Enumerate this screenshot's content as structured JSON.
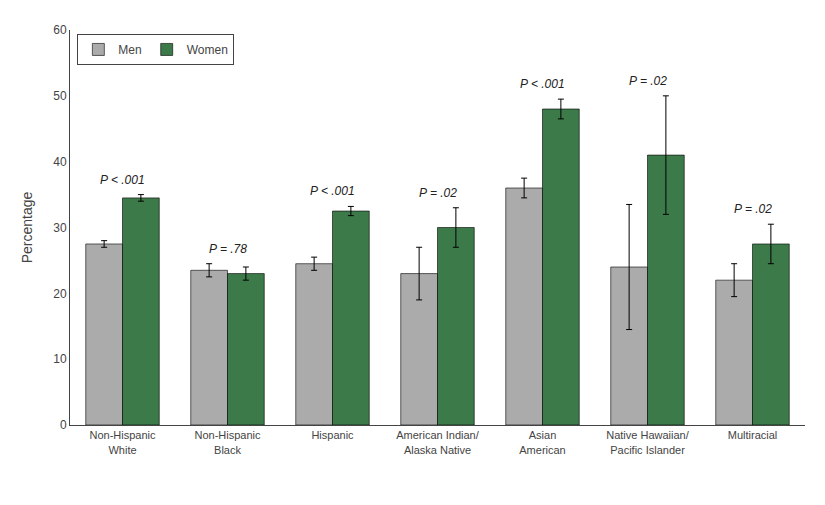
{
  "chart_data": {
    "type": "bar",
    "categories": [
      "Non-Hispanic\nWhite",
      "Non-Hispanic\nBlack",
      "Hispanic",
      "American Indian/\nAlaska Native",
      "Asian\nAmerican",
      "Native Hawaiian/\nPacific Islander",
      "Multiracial"
    ],
    "series": [
      {
        "name": "Men",
        "color": "#ababab",
        "values": [
          27.5,
          23.5,
          24.5,
          23.0,
          36.0,
          24.0,
          22.0
        ],
        "errors": [
          0.5,
          1.0,
          1.0,
          4.0,
          1.5,
          9.5,
          2.5
        ]
      },
      {
        "name": "Women",
        "color": "#3d7a4a",
        "values": [
          34.5,
          23.0,
          32.5,
          30.0,
          48.0,
          41.0,
          27.5
        ],
        "errors": [
          0.5,
          1.0,
          0.7,
          3.0,
          1.5,
          9.0,
          3.0
        ]
      }
    ],
    "annotations": [
      "P < .001",
      "P = .78",
      "P < .001",
      "P = .02",
      "P < .001",
      "P = .02",
      "P = .02"
    ],
    "ylabel": "Percentage",
    "ylim": [
      0,
      60
    ],
    "yticks": [
      0,
      10,
      20,
      30,
      40,
      50,
      60
    ],
    "grid": false,
    "legend": "upper left"
  }
}
